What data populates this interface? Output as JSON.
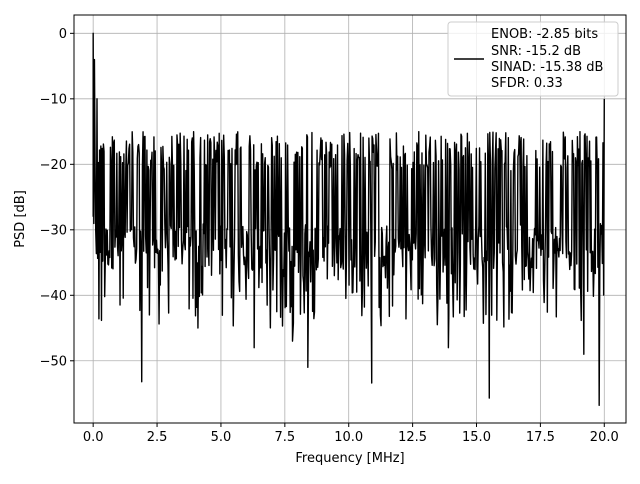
{
  "chart_data": {
    "type": "line",
    "xlabel": "Frequency [MHz]",
    "ylabel": "PSD [dB]",
    "xlim": [
      -0.75,
      20.85
    ],
    "ylim": [
      -59.5,
      2.8
    ],
    "x_ticks": [
      0.0,
      2.5,
      5.0,
      7.5,
      10.0,
      12.5,
      15.0,
      17.5,
      20.0
    ],
    "x_tick_labels": [
      "0.0",
      "2.5",
      "5.0",
      "7.5",
      "10.0",
      "12.5",
      "15.0",
      "17.5",
      "20.0"
    ],
    "y_ticks": [
      0,
      -10,
      -20,
      -30,
      -40,
      -50
    ],
    "y_tick_labels": [
      "0",
      "−10",
      "−20",
      "−30",
      "−40",
      "−50"
    ],
    "grid": true,
    "legend_position": "top-right",
    "legend_lines": [
      "ENOB: -2.85 bits",
      "SNR: -15.2 dB",
      "SINAD: -15.38 dB",
      "SFDR: 0.33"
    ],
    "line_color": "#000000",
    "series": [
      {
        "x_start": 0.0,
        "x_end": 20.0,
        "points": 800,
        "peak": [
          0.0,
          0.0
        ],
        "noise_floor_band": [
          -36,
          -15
        ],
        "notable_values": [
          [
            0.0,
            -28
          ],
          [
            0.05,
            -4
          ],
          [
            0.15,
            -10
          ],
          [
            1.9,
            -53.2
          ],
          [
            2.2,
            -43
          ],
          [
            4.1,
            -45
          ],
          [
            6.3,
            -48
          ],
          [
            7.8,
            -47
          ],
          [
            8.4,
            -51
          ],
          [
            10.9,
            -53.4
          ],
          [
            13.9,
            -48
          ],
          [
            15.5,
            -55.7
          ],
          [
            19.2,
            -49
          ],
          [
            19.8,
            -56.8
          ],
          [
            20.0,
            -10
          ]
        ]
      }
    ]
  }
}
